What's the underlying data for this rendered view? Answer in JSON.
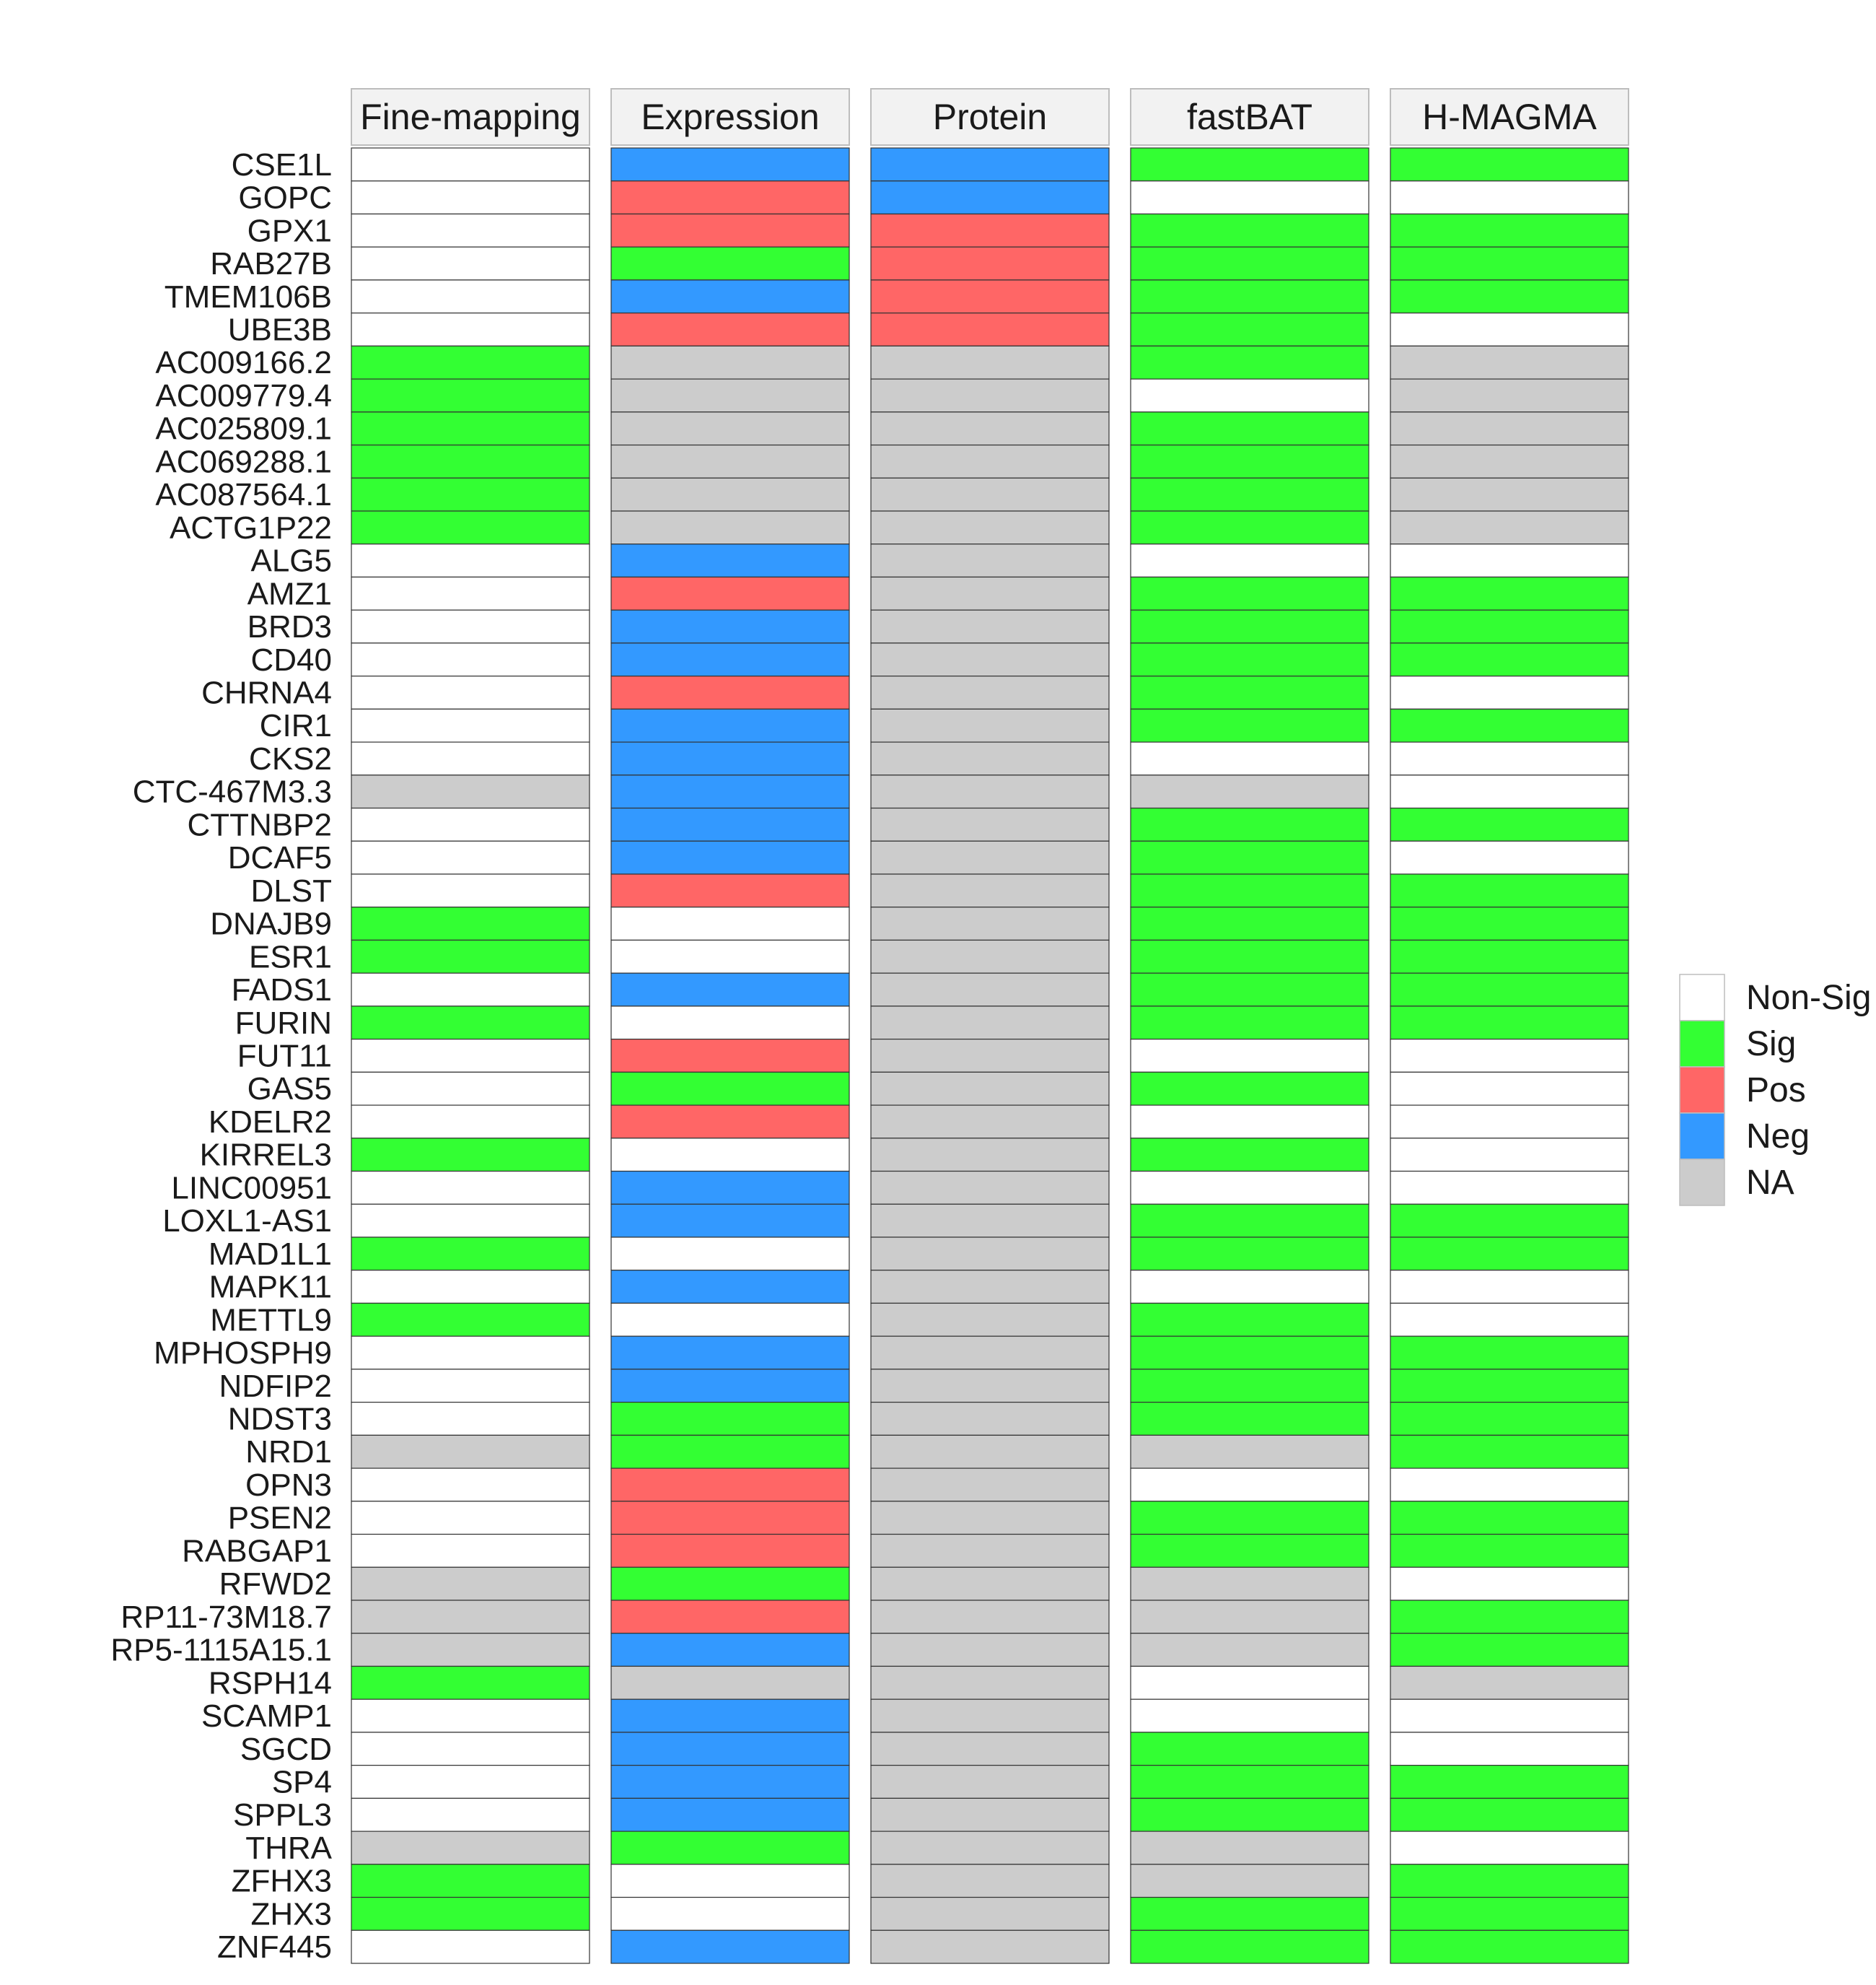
{
  "chart_data": {
    "type": "heatmap",
    "columns": [
      "Fine-mapping",
      "Expression",
      "Protein",
      "fastBAT",
      "H-MAGMA"
    ],
    "rows": [
      "CSE1L",
      "GOPC",
      "GPX1",
      "RAB27B",
      "TMEM106B",
      "UBE3B",
      "AC009166.2",
      "AC009779.4",
      "AC025809.1",
      "AC069288.1",
      "AC087564.1",
      "ACTG1P22",
      "ALG5",
      "AMZ1",
      "BRD3",
      "CD40",
      "CHRNA4",
      "CIR1",
      "CKS2",
      "CTC-467M3.3",
      "CTTNBP2",
      "DCAF5",
      "DLST",
      "DNAJB9",
      "ESR1",
      "FADS1",
      "FURIN",
      "FUT11",
      "GAS5",
      "KDELR2",
      "KIRREL3",
      "LINC00951",
      "LOXL1-AS1",
      "MAD1L1",
      "MAPK11",
      "METTL9",
      "MPHOSPH9",
      "NDFIP2",
      "NDST3",
      "NRD1",
      "OPN3",
      "PSEN2",
      "RABGAP1",
      "RFWD2",
      "RP11-73M18.7",
      "RP5-1115A15.1",
      "RSPH14",
      "SCAMP1",
      "SGCD",
      "SP4",
      "SPPL3",
      "THRA",
      "ZFHX3",
      "ZHX3",
      "ZNF445"
    ],
    "values": [
      [
        "Non-Sig",
        "Neg",
        "Neg",
        "Sig",
        "Sig"
      ],
      [
        "Non-Sig",
        "Pos",
        "Neg",
        "Non-Sig",
        "Non-Sig"
      ],
      [
        "Non-Sig",
        "Pos",
        "Pos",
        "Sig",
        "Sig"
      ],
      [
        "Non-Sig",
        "Sig",
        "Pos",
        "Sig",
        "Sig"
      ],
      [
        "Non-Sig",
        "Neg",
        "Pos",
        "Sig",
        "Sig"
      ],
      [
        "Non-Sig",
        "Pos",
        "Pos",
        "Sig",
        "Non-Sig"
      ],
      [
        "Sig",
        "NA",
        "NA",
        "Sig",
        "NA"
      ],
      [
        "Sig",
        "NA",
        "NA",
        "Non-Sig",
        "NA"
      ],
      [
        "Sig",
        "NA",
        "NA",
        "Sig",
        "NA"
      ],
      [
        "Sig",
        "NA",
        "NA",
        "Sig",
        "NA"
      ],
      [
        "Sig",
        "NA",
        "NA",
        "Sig",
        "NA"
      ],
      [
        "Sig",
        "NA",
        "NA",
        "Sig",
        "NA"
      ],
      [
        "Non-Sig",
        "Neg",
        "NA",
        "Non-Sig",
        "Non-Sig"
      ],
      [
        "Non-Sig",
        "Pos",
        "NA",
        "Sig",
        "Sig"
      ],
      [
        "Non-Sig",
        "Neg",
        "NA",
        "Sig",
        "Sig"
      ],
      [
        "Non-Sig",
        "Neg",
        "NA",
        "Sig",
        "Sig"
      ],
      [
        "Non-Sig",
        "Pos",
        "NA",
        "Sig",
        "Non-Sig"
      ],
      [
        "Non-Sig",
        "Neg",
        "NA",
        "Sig",
        "Sig"
      ],
      [
        "Non-Sig",
        "Neg",
        "NA",
        "Non-Sig",
        "Non-Sig"
      ],
      [
        "NA",
        "Neg",
        "NA",
        "NA",
        "Non-Sig"
      ],
      [
        "Non-Sig",
        "Neg",
        "NA",
        "Sig",
        "Sig"
      ],
      [
        "Non-Sig",
        "Neg",
        "NA",
        "Sig",
        "Non-Sig"
      ],
      [
        "Non-Sig",
        "Pos",
        "NA",
        "Sig",
        "Sig"
      ],
      [
        "Sig",
        "Non-Sig",
        "NA",
        "Sig",
        "Sig"
      ],
      [
        "Sig",
        "Non-Sig",
        "NA",
        "Sig",
        "Sig"
      ],
      [
        "Non-Sig",
        "Neg",
        "NA",
        "Sig",
        "Sig"
      ],
      [
        "Sig",
        "Non-Sig",
        "NA",
        "Sig",
        "Sig"
      ],
      [
        "Non-Sig",
        "Pos",
        "NA",
        "Non-Sig",
        "Non-Sig"
      ],
      [
        "Non-Sig",
        "Sig",
        "NA",
        "Sig",
        "Non-Sig"
      ],
      [
        "Non-Sig",
        "Pos",
        "NA",
        "Non-Sig",
        "Non-Sig"
      ],
      [
        "Sig",
        "Non-Sig",
        "NA",
        "Sig",
        "Non-Sig"
      ],
      [
        "Non-Sig",
        "Neg",
        "NA",
        "Non-Sig",
        "Non-Sig"
      ],
      [
        "Non-Sig",
        "Neg",
        "NA",
        "Sig",
        "Sig"
      ],
      [
        "Sig",
        "Non-Sig",
        "NA",
        "Sig",
        "Sig"
      ],
      [
        "Non-Sig",
        "Neg",
        "NA",
        "Non-Sig",
        "Non-Sig"
      ],
      [
        "Sig",
        "Non-Sig",
        "NA",
        "Sig",
        "Non-Sig"
      ],
      [
        "Non-Sig",
        "Neg",
        "NA",
        "Sig",
        "Sig"
      ],
      [
        "Non-Sig",
        "Neg",
        "NA",
        "Sig",
        "Sig"
      ],
      [
        "Non-Sig",
        "Sig",
        "NA",
        "Sig",
        "Sig"
      ],
      [
        "NA",
        "Sig",
        "NA",
        "NA",
        "Sig"
      ],
      [
        "Non-Sig",
        "Pos",
        "NA",
        "Non-Sig",
        "Non-Sig"
      ],
      [
        "Non-Sig",
        "Pos",
        "NA",
        "Sig",
        "Sig"
      ],
      [
        "Non-Sig",
        "Pos",
        "NA",
        "Sig",
        "Sig"
      ],
      [
        "NA",
        "Sig",
        "NA",
        "NA",
        "Non-Sig"
      ],
      [
        "NA",
        "Pos",
        "NA",
        "NA",
        "Sig"
      ],
      [
        "NA",
        "Neg",
        "NA",
        "NA",
        "Sig"
      ],
      [
        "Sig",
        "NA",
        "NA",
        "Non-Sig",
        "NA"
      ],
      [
        "Non-Sig",
        "Neg",
        "NA",
        "Non-Sig",
        "Non-Sig"
      ],
      [
        "Non-Sig",
        "Neg",
        "NA",
        "Sig",
        "Non-Sig"
      ],
      [
        "Non-Sig",
        "Neg",
        "NA",
        "Sig",
        "Sig"
      ],
      [
        "Non-Sig",
        "Neg",
        "NA",
        "Sig",
        "Sig"
      ],
      [
        "NA",
        "Sig",
        "NA",
        "NA",
        "Non-Sig"
      ],
      [
        "Sig",
        "Non-Sig",
        "NA",
        "NA",
        "Sig"
      ],
      [
        "Sig",
        "Non-Sig",
        "NA",
        "Sig",
        "Sig"
      ],
      [
        "Non-Sig",
        "Neg",
        "NA",
        "Sig",
        "Sig"
      ]
    ],
    "legend": {
      "position": "right",
      "items": [
        {
          "label": "Non-Sig",
          "color": "#ffffff"
        },
        {
          "label": "Sig",
          "color": "#33ff33"
        },
        {
          "label": "Pos",
          "color": "#ff6666"
        },
        {
          "label": "Neg",
          "color": "#3399ff"
        },
        {
          "label": "NA",
          "color": "#cccccc"
        }
      ]
    },
    "strip_fill": "#f2f2f2",
    "grid": false
  }
}
